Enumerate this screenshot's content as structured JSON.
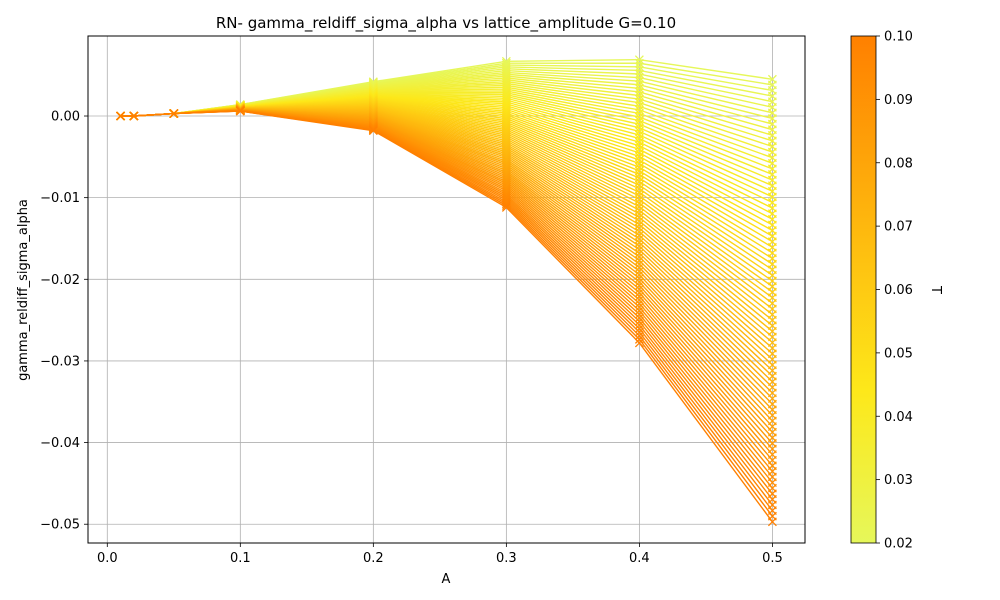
{
  "chart_data": {
    "type": "line",
    "title": "RN- gamma_reldiff_sigma_alpha vs lattice_amplitude G=0.10",
    "xlabel": "A",
    "ylabel": "gamma_reldiff_sigma_alpha",
    "xlim": [
      -0.0145,
      0.5245
    ],
    "ylim": [
      -0.0523,
      0.0098
    ],
    "xticks": [
      0.0,
      0.1,
      0.2,
      0.3,
      0.4,
      0.5
    ],
    "xtick_labels": [
      "0.0",
      "0.1",
      "0.2",
      "0.3",
      "0.4",
      "0.5"
    ],
    "yticks": [
      0.0,
      -0.01,
      -0.02,
      -0.03,
      -0.04,
      -0.05
    ],
    "ytick_labels": [
      "0.00",
      "−0.01",
      "−0.02",
      "−0.03",
      "−0.04",
      "−0.05"
    ],
    "grid": true,
    "marker": "x",
    "x": [
      0.01,
      0.02,
      0.05,
      0.1,
      0.2,
      0.3,
      0.4,
      0.5
    ],
    "series_T_range": [
      0.02,
      0.1
    ],
    "series_count": 80,
    "series_low_T": [
      0.0,
      0.0,
      0.0003,
      0.0014,
      0.0042,
      0.0067,
      0.0069,
      0.0045
    ],
    "series_high_T": [
      0.0,
      0.0,
      0.0003,
      0.0006,
      -0.0018,
      -0.0112,
      -0.0278,
      -0.0497
    ],
    "colorbar": {
      "label": "T",
      "min": 0.02,
      "max": 0.1,
      "ticks": [
        0.02,
        0.03,
        0.04,
        0.05,
        0.06,
        0.07,
        0.08,
        0.09,
        0.1
      ],
      "tick_labels": [
        "0.02",
        "0.03",
        "0.04",
        "0.05",
        "0.06",
        "0.07",
        "0.08",
        "0.09",
        "0.10"
      ],
      "color_low": "#e6f75a",
      "color_mid": "#fde81a",
      "color_high": "#ff8000"
    }
  }
}
